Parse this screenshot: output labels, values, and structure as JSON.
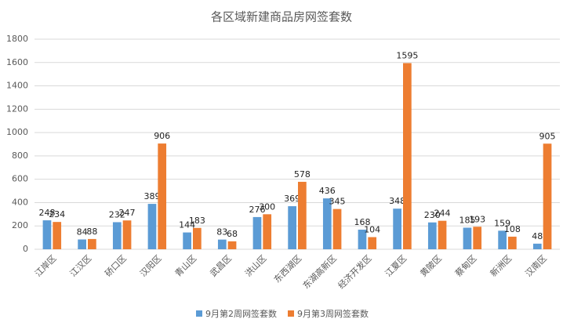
{
  "chart_data": {
    "type": "bar",
    "title": "各区域新建商品房网签套数",
    "categories": [
      "江岸区",
      "江汉区",
      "硚口区",
      "汉阳区",
      "青山区",
      "武昌区",
      "洪山区",
      "东西湖区",
      "东湖高新区",
      "经济开发区",
      "江夏区",
      "黄陂区",
      "蔡甸区",
      "新洲区",
      "汉南区"
    ],
    "series": [
      {
        "name": "9月第2周网签套数",
        "color": "#5b9bd5",
        "values": [
          248,
          84,
          232,
          389,
          144,
          83,
          276,
          369,
          436,
          168,
          348,
          230,
          185,
          159,
          48
        ]
      },
      {
        "name": "9月第3周网签套数",
        "color": "#ed7d31",
        "values": [
          234,
          88,
          247,
          906,
          183,
          68,
          300,
          578,
          345,
          104,
          1595,
          244,
          193,
          108,
          905
        ]
      }
    ],
    "ylim": [
      0,
      1800
    ],
    "yticks": [
      0,
      200,
      400,
      600,
      800,
      1000,
      1200,
      1400,
      1600,
      1800
    ],
    "grid": true,
    "legend": "bottom"
  }
}
